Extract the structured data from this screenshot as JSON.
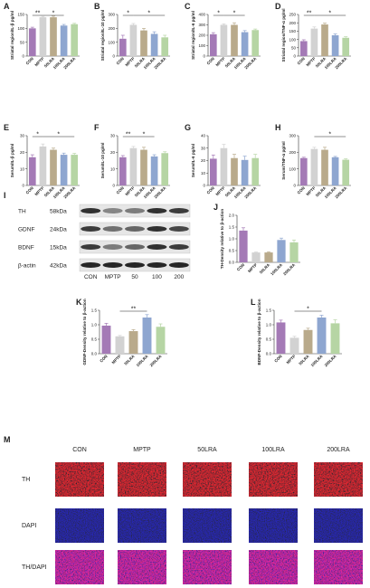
{
  "chart_data": [
    {
      "type": "bar",
      "panel": "A",
      "ylabel": "Striatal region/IL-β pg/ml",
      "categories": [
        "CON",
        "MPTP",
        "50LRA",
        "100LRA",
        "200LRA"
      ],
      "values": [
        100,
        140,
        140,
        110,
        115
      ],
      "errors": [
        4,
        3,
        4,
        4,
        3
      ],
      "colors": [
        "#a47ab6",
        "#d2d2d2",
        "#b9aa8b",
        "#8ea6d0",
        "#b6d5a4"
      ],
      "ylim": [
        0,
        150
      ],
      "yticks": [
        0,
        50,
        100,
        150
      ],
      "annotations": [
        {
          "text": "**",
          "between": [
            "CON",
            "MPTP"
          ]
        },
        {
          "text": "*",
          "between": [
            "MPTP",
            "100LRA"
          ]
        }
      ]
    },
    {
      "type": "bar",
      "panel": "B",
      "ylabel": "Striatal region/IL-10 pg/ml",
      "categories": [
        "CON",
        "MPTP",
        "50LRA",
        "100LRA",
        "200LRA"
      ],
      "values": [
        125,
        225,
        185,
        160,
        135
      ],
      "errors": [
        25,
        10,
        15,
        15,
        15
      ],
      "colors": [
        "#a47ab6",
        "#d2d2d2",
        "#b9aa8b",
        "#8ea6d0",
        "#b6d5a4"
      ],
      "ylim": [
        0,
        300
      ],
      "yticks": [
        0,
        100,
        200,
        300
      ],
      "annotations": [
        {
          "text": "*",
          "between": [
            "CON",
            "MPTP"
          ]
        },
        {
          "text": "*",
          "between": [
            "MPTP",
            "200LRA"
          ]
        }
      ]
    },
    {
      "type": "bar",
      "panel": "C",
      "ylabel": "Striatal region/IL-6 pg/ml",
      "categories": [
        "CON",
        "MPTP",
        "50LRA",
        "100LRA",
        "200LRA"
      ],
      "values": [
        210,
        300,
        300,
        230,
        250
      ],
      "errors": [
        15,
        10,
        20,
        15,
        10
      ],
      "colors": [
        "#a47ab6",
        "#d2d2d2",
        "#b9aa8b",
        "#8ea6d0",
        "#b6d5a4"
      ],
      "ylim": [
        0,
        400
      ],
      "yticks": [
        0,
        100,
        200,
        300,
        400
      ],
      "annotations": [
        {
          "text": "*",
          "between": [
            "CON",
            "MPTP"
          ]
        },
        {
          "text": "*",
          "between": [
            "MPTP",
            "100LRA"
          ]
        }
      ]
    },
    {
      "type": "bar",
      "panel": "D",
      "ylabel": "Striatal region/TNF-α pg/ml",
      "categories": [
        "CON",
        "MPTP",
        "50LRA",
        "100LRA",
        "200LRA"
      ],
      "values": [
        90,
        165,
        190,
        125,
        110
      ],
      "errors": [
        8,
        10,
        8,
        8,
        6
      ],
      "colors": [
        "#a47ab6",
        "#d2d2d2",
        "#b9aa8b",
        "#8ea6d0",
        "#b6d5a4"
      ],
      "ylim": [
        0,
        250
      ],
      "yticks": [
        0,
        50,
        100,
        150,
        200,
        250
      ],
      "annotations": [
        {
          "text": "**",
          "between": [
            "CON",
            "MPTP"
          ]
        },
        {
          "text": "*",
          "between": [
            "MPTP",
            "200LRA"
          ]
        }
      ]
    },
    {
      "type": "bar",
      "panel": "E",
      "ylabel": "Serum/IL-β pg/ml",
      "categories": [
        "CON",
        "MPTP",
        "50LRA",
        "100LRA",
        "200LRA"
      ],
      "values": [
        17,
        23.5,
        21.5,
        18.5,
        18.5
      ],
      "errors": [
        1.5,
        1.5,
        1,
        1,
        0.8
      ],
      "colors": [
        "#a47ab6",
        "#d2d2d2",
        "#b9aa8b",
        "#8ea6d0",
        "#b6d5a4"
      ],
      "ylim": [
        0,
        30
      ],
      "yticks": [
        0,
        10,
        20,
        30
      ],
      "annotations": [
        {
          "text": "*",
          "between": [
            "CON",
            "MPTP"
          ]
        },
        {
          "text": "*",
          "between": [
            "MPTP",
            "200LRA"
          ]
        }
      ]
    },
    {
      "type": "bar",
      "panel": "F",
      "ylabel": "Serum/IL-10 pg/ml",
      "categories": [
        "CON",
        "MPTP",
        "50LRA",
        "100LRA",
        "200LRA"
      ],
      "values": [
        17,
        22.5,
        21.5,
        17.5,
        19.5
      ],
      "errors": [
        1,
        1,
        1.5,
        1,
        0.8
      ],
      "colors": [
        "#a47ab6",
        "#d2d2d2",
        "#b9aa8b",
        "#8ea6d0",
        "#b6d5a4"
      ],
      "ylim": [
        0,
        30
      ],
      "yticks": [
        0,
        10,
        20,
        30
      ],
      "annotations": [
        {
          "text": "**",
          "between": [
            "CON",
            "MPTP"
          ]
        },
        {
          "text": "*",
          "between": [
            "MPTP",
            "100LRA"
          ]
        }
      ]
    },
    {
      "type": "bar",
      "panel": "G",
      "ylabel": "Serum/IL-6 pg/ml",
      "categories": [
        "CON",
        "MPTP",
        "50LRA",
        "100LRA",
        "200LRA"
      ],
      "values": [
        21.5,
        30,
        22,
        20.5,
        22
      ],
      "errors": [
        3,
        3,
        3,
        3,
        3
      ],
      "colors": [
        "#a47ab6",
        "#d2d2d2",
        "#b9aa8b",
        "#8ea6d0",
        "#b6d5a4"
      ],
      "ylim": [
        0,
        40
      ],
      "yticks": [
        0,
        10,
        20,
        30,
        40
      ],
      "annotations": []
    },
    {
      "type": "bar",
      "panel": "H",
      "ylabel": "Serum/TNF-α pg/ml",
      "categories": [
        "CON",
        "MPTP",
        "50LRA",
        "100LRA",
        "200LRA"
      ],
      "values": [
        165,
        220,
        215,
        170,
        155
      ],
      "errors": [
        5,
        10,
        15,
        5,
        5
      ],
      "colors": [
        "#a47ab6",
        "#d2d2d2",
        "#b9aa8b",
        "#8ea6d0",
        "#b6d5a4"
      ],
      "ylim": [
        0,
        300
      ],
      "yticks": [
        0,
        100,
        200,
        300
      ],
      "annotations": [
        {
          "text": "*",
          "between": [
            "MPTP",
            "200LRA"
          ]
        }
      ]
    },
    {
      "type": "bar",
      "panel": "J",
      "ylabel": "TH-Density relative to β-action",
      "categories": [
        "CON",
        "MPTP",
        "50LRA",
        "100LRA",
        "200LRA"
      ],
      "values": [
        1.35,
        0.42,
        0.42,
        0.95,
        0.85
      ],
      "errors": [
        0.12,
        0.02,
        0.03,
        0.08,
        0.1
      ],
      "colors": [
        "#a47ab6",
        "#d2d2d2",
        "#b9aa8b",
        "#8ea6d0",
        "#b6d5a4"
      ],
      "ylim": [
        0,
        2
      ],
      "yticks": [
        {
          "value": 0,
          "label": "0.0"
        },
        {
          "value": 0.5,
          "label": "0.5"
        },
        {
          "value": 1,
          "label": "1.0"
        },
        {
          "value": 1.5,
          "label": "1.5"
        },
        {
          "value": 2,
          "label": "2.0"
        }
      ],
      "annotations": []
    },
    {
      "type": "bar",
      "panel": "K",
      "ylabel": "GDNF-Density relative to β-action",
      "categories": [
        "CON",
        "MPTP",
        "50LRA",
        "100LRA",
        "200LRA"
      ],
      "values": [
        0.97,
        0.6,
        0.78,
        1.25,
        0.93
      ],
      "errors": [
        0.08,
        0.03,
        0.05,
        0.1,
        0.1
      ],
      "colors": [
        "#a47ab6",
        "#d2d2d2",
        "#b9aa8b",
        "#8ea6d0",
        "#b6d5a4"
      ],
      "ylim": [
        0,
        1.5
      ],
      "yticks": [
        {
          "value": 0,
          "label": "0.0"
        },
        {
          "value": 0.5,
          "label": "0.5"
        },
        {
          "value": 1,
          "label": "1.0"
        },
        {
          "value": 1.5,
          "label": "1.5"
        }
      ],
      "annotations": [
        {
          "text": "**",
          "between": [
            "MPTP",
            "100LRA"
          ]
        }
      ]
    },
    {
      "type": "bar",
      "panel": "L",
      "ylabel": "BDNF-Density relative to β-action",
      "categories": [
        "CON",
        "MPTP",
        "50LRA",
        "100LRA",
        "200LRA"
      ],
      "values": [
        1.08,
        0.55,
        0.82,
        1.25,
        1.05
      ],
      "errors": [
        0.08,
        0.05,
        0.06,
        0.08,
        0.12
      ],
      "colors": [
        "#a47ab6",
        "#d2d2d2",
        "#b9aa8b",
        "#8ea6d0",
        "#b6d5a4"
      ],
      "ylim": [
        0,
        1.5
      ],
      "yticks": [
        {
          "value": 0,
          "label": "0.0"
        },
        {
          "value": 0.5,
          "label": "0.5"
        },
        {
          "value": 1,
          "label": "1.0"
        },
        {
          "value": 1.5,
          "label": "1.5"
        }
      ],
      "annotations": [
        {
          "text": "*",
          "between": [
            "MPTP",
            "100LRA"
          ]
        }
      ]
    }
  ],
  "blot": {
    "panel": "I",
    "rows": [
      {
        "protein": "TH",
        "size": "58kDa"
      },
      {
        "protein": "GDNF",
        "size": "24kDa"
      },
      {
        "protein": "BDNF",
        "size": "15kDa"
      },
      {
        "protein": "β-actin",
        "size": "42kDa"
      }
    ],
    "lanes": [
      "CON",
      "MPTP",
      "50",
      "100",
      "200"
    ]
  },
  "images": {
    "panel": "M",
    "columns": [
      "CON",
      "MPTP",
      "50LRA",
      "100LRA",
      "200LRA"
    ],
    "rows": [
      "TH",
      "DAPI",
      "TH/DAPI"
    ]
  }
}
